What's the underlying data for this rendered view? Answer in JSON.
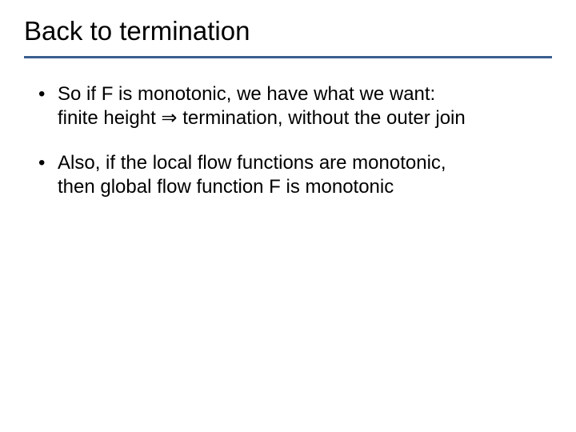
{
  "slide": {
    "title": "Back to termination",
    "title_color": "#000000",
    "title_fontsize": 33,
    "underline_color": "#3b5e8f",
    "underline_height": 3,
    "background_color": "#ffffff",
    "body_fontsize": 24,
    "body_color": "#000000",
    "bullets": [
      {
        "line1": "So if F is monotonic, we have what we want:",
        "line2_pre": "finite height ",
        "arrow": "⇒",
        "line2_post": " termination, without the outer join"
      },
      {
        "line1": "Also, if the local flow functions are monotonic,",
        "line2": "then global flow function F is monotonic"
      }
    ]
  }
}
